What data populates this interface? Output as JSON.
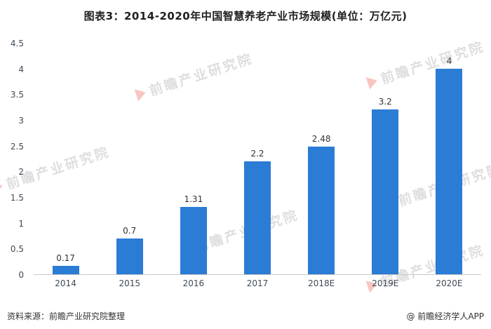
{
  "title": "图表3：2014-2020年中国智慧养老产业市场规模(单位：万亿元)",
  "chart_data": {
    "type": "bar",
    "title": "图表3：2014-2020年中国智慧养老产业市场规模(单位：万亿元)",
    "categories": [
      "2014",
      "2015",
      "2016",
      "2017",
      "2018E",
      "2019E",
      "2020E"
    ],
    "values": [
      0.17,
      0.7,
      1.31,
      2.2,
      2.48,
      3.2,
      4
    ],
    "xlabel": "",
    "ylabel": "",
    "unit": "万亿元",
    "ylim": [
      0,
      4.5
    ],
    "yticks": [
      0,
      0.5,
      1,
      1.5,
      2,
      2.5,
      3,
      3.5,
      4,
      4.5
    ],
    "grid": false,
    "legend": "none",
    "bar_color": "#2b7cd5"
  },
  "watermark": {
    "text": "前瞻产业研究院"
  },
  "footer": {
    "source": "资料来源：前瞻产业研究院整理",
    "credit": "@ 前瞻经济学人APP"
  }
}
